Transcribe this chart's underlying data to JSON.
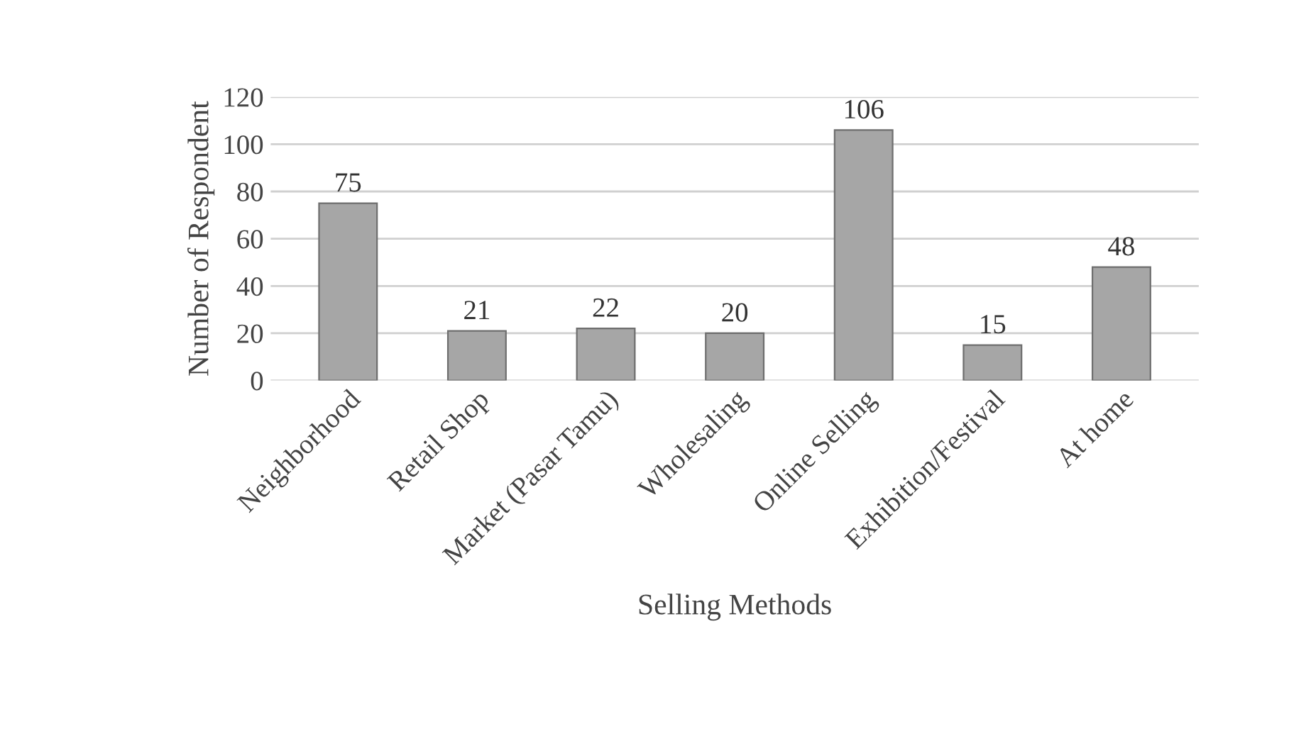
{
  "chart_data": {
    "type": "bar",
    "xlabel": "Selling Methods",
    "ylabel": "Number of Respondent",
    "categories": [
      "Neighborhood",
      "Retail Shop",
      "Market (Pasar Tamu)",
      "Wholesaling",
      "Online Selling",
      "Exhibition/Festival",
      "At home"
    ],
    "values": [
      75,
      21,
      22,
      20,
      106,
      15,
      48
    ],
    "color": "#a6a6a6",
    "ylim": [
      0,
      120
    ],
    "yticks": [
      0,
      20,
      40,
      60,
      80,
      100,
      120
    ],
    "grid": "y",
    "data_labels": true
  }
}
